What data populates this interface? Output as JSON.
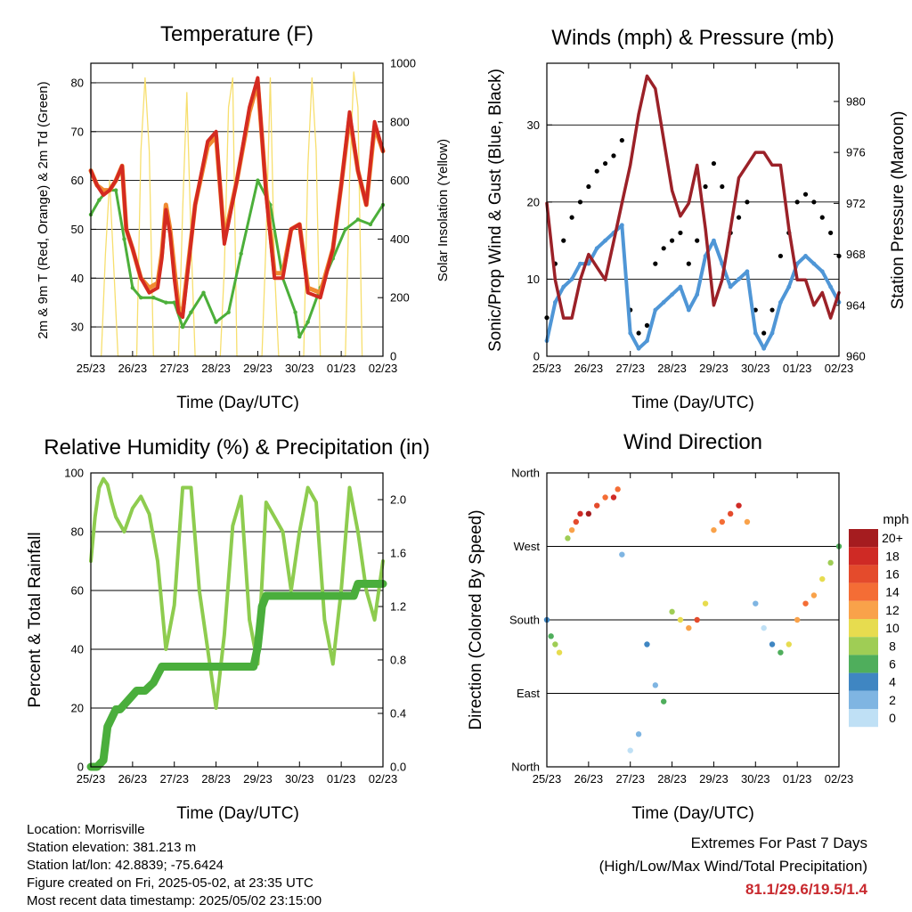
{
  "panels": {
    "temperature": {
      "title": "Temperature (F)",
      "xlabel": "Time (Day/UTC)",
      "ylabel_left": "2m & 9m T (Red, Orange) & 2m Td (Green)",
      "ylabel_right": "Solar Insolation (Yellow)"
    },
    "winds": {
      "title": "Winds (mph) & Pressure (mb)",
      "xlabel": "Time (Day/UTC)",
      "ylabel_left": "Sonic/Prop Wind & Gust (Blue, Black)",
      "ylabel_right": "Station Pressure (Maroon)"
    },
    "humidity": {
      "title": "Relative Humidity (%) & Precipitation (in)",
      "xlabel": "Time (Day/UTC)",
      "ylabel_left": "Percent & Total Rainfall"
    },
    "direction": {
      "title": "Wind Direction",
      "xlabel": "Time (Day/UTC)",
      "ylabel_left": "Direction (Colored By Speed)",
      "legend_title": "mph"
    }
  },
  "footer": {
    "location": "Location: Morrisville",
    "elevation": "Station elevation: 381.213 m",
    "latlon": "Station lat/lon: 42.8839; -75.6424",
    "created": "Figure created on Fri, 2025-05-02, at 23:35 UTC",
    "recent": "Most recent data timestamp: 2025/05/02 23:15:00",
    "extremes_title": "Extremes For Past 7 Days",
    "extremes_subtitle": "(High/Low/Max Wind/Total Precipitation)",
    "extremes_values": "81.1/29.6/19.5/1.4"
  },
  "chart_data": [
    {
      "id": "temperature",
      "type": "line",
      "x_ticks": [
        "25/23",
        "26/23",
        "27/23",
        "28/23",
        "29/23",
        "30/23",
        "01/23",
        "02/23"
      ],
      "xlim": [
        0,
        7
      ],
      "ylim_left": [
        24,
        84
      ],
      "yticks_left": [
        30,
        40,
        50,
        60,
        70,
        80
      ],
      "ylim_right": [
        0,
        1000
      ],
      "yticks_right": [
        0,
        200,
        400,
        600,
        800,
        1000
      ],
      "colors": {
        "t2m": "#d42a20",
        "t9m": "#f08a30",
        "td2m": "#4caf3a",
        "solar": "#f7df6e"
      },
      "series": [
        {
          "key": "t2m",
          "x": [
            0,
            0.15,
            0.3,
            0.45,
            0.6,
            0.75,
            0.85,
            1.0,
            1.2,
            1.4,
            1.6,
            1.7,
            1.8,
            1.9,
            2.0,
            2.1,
            2.2,
            2.5,
            2.8,
            3.0,
            3.2,
            3.5,
            3.8,
            4.0,
            4.2,
            4.4,
            4.6,
            4.8,
            5.0,
            5.2,
            5.5,
            5.8,
            6.0,
            6.2,
            6.4,
            6.6,
            6.8,
            7.0
          ],
          "values": [
            62,
            59,
            57,
            58,
            60,
            63,
            50,
            46,
            40,
            37,
            38,
            44,
            54,
            49,
            40,
            33,
            32,
            55,
            68,
            70,
            47,
            60,
            75,
            81,
            57,
            40,
            40,
            50,
            51,
            37,
            36,
            46,
            59,
            74,
            62,
            55,
            72,
            66
          ]
        },
        {
          "key": "t9m",
          "x": [
            0,
            0.15,
            0.3,
            0.45,
            0.6,
            0.75,
            0.85,
            1.0,
            1.2,
            1.4,
            1.6,
            1.7,
            1.8,
            1.9,
            2.0,
            2.1,
            2.2,
            2.5,
            2.8,
            3.0,
            3.2,
            3.5,
            3.8,
            4.0,
            4.2,
            4.4,
            4.6,
            4.8,
            5.0,
            5.2,
            5.5,
            5.8,
            6.0,
            6.2,
            6.4,
            6.6,
            6.8,
            7.0
          ],
          "values": [
            62,
            59,
            58,
            58,
            60,
            63,
            50,
            46,
            40,
            38,
            39,
            45,
            55,
            50,
            42,
            34,
            33,
            55,
            67,
            69,
            48,
            60,
            74,
            80,
            58,
            41,
            41,
            50,
            51,
            38,
            37,
            46,
            59,
            73,
            62,
            55,
            71,
            66
          ]
        },
        {
          "key": "td2m",
          "x": [
            0,
            0.2,
            0.4,
            0.6,
            0.8,
            1.0,
            1.2,
            1.5,
            1.8,
            2.0,
            2.2,
            2.4,
            2.7,
            3.0,
            3.3,
            3.6,
            4.0,
            4.3,
            4.6,
            4.9,
            5.0,
            5.2,
            5.5,
            5.8,
            6.1,
            6.4,
            6.7,
            7.0
          ],
          "values": [
            53,
            56,
            58,
            58,
            48,
            38,
            36,
            36,
            35,
            35,
            30,
            33,
            37,
            31,
            33,
            45,
            60,
            55,
            40,
            33,
            28,
            31,
            38,
            44,
            50,
            52,
            51,
            55
          ]
        },
        {
          "key": "solar",
          "x": [
            0.25,
            0.35,
            0.45,
            0.55,
            0.65,
            1.1,
            1.2,
            1.3,
            1.4,
            1.5,
            2.1,
            2.2,
            2.3,
            2.4,
            2.5,
            3.1,
            3.2,
            3.3,
            3.4,
            3.5,
            4.1,
            4.2,
            4.3,
            4.4,
            4.5,
            5.1,
            5.2,
            5.3,
            5.4,
            5.5,
            6.1,
            6.2,
            6.3,
            6.4,
            6.5
          ],
          "values": [
            0,
            350,
            600,
            300,
            0,
            0,
            700,
            950,
            700,
            0,
            0,
            500,
            900,
            400,
            0,
            0,
            300,
            850,
            950,
            0,
            0,
            400,
            950,
            300,
            0,
            0,
            650,
            950,
            700,
            0,
            0,
            600,
            970,
            850,
            0
          ]
        }
      ]
    },
    {
      "id": "winds",
      "type": "scatter",
      "x_ticks": [
        "25/23",
        "26/23",
        "27/23",
        "28/23",
        "29/23",
        "30/23",
        "01/23",
        "02/23"
      ],
      "xlim": [
        0,
        7
      ],
      "ylim_left": [
        0,
        38
      ],
      "yticks_left": [
        0,
        10,
        20,
        30
      ],
      "ylim_right": [
        960,
        983
      ],
      "yticks_right": [
        960,
        964,
        968,
        972,
        976,
        980
      ],
      "colors": {
        "wind": "#4f96d6",
        "gust": "#000000",
        "pressure": "#9b2128"
      },
      "series": [
        {
          "key": "wind",
          "x": [
            0,
            0.2,
            0.4,
            0.6,
            0.8,
            1.0,
            1.2,
            1.4,
            1.6,
            1.8,
            2.0,
            2.2,
            2.4,
            2.6,
            2.8,
            3.0,
            3.2,
            3.4,
            3.6,
            3.8,
            4.0,
            4.2,
            4.4,
            4.6,
            4.8,
            5.0,
            5.2,
            5.4,
            5.6,
            5.8,
            6.0,
            6.2,
            6.4,
            6.6,
            6.8,
            7.0
          ],
          "values": [
            2,
            7,
            9,
            10,
            12,
            12,
            14,
            15,
            16,
            17,
            3,
            1,
            2,
            6,
            7,
            8,
            9,
            6,
            8,
            13,
            15,
            12,
            9,
            10,
            11,
            3,
            1,
            3,
            7,
            9,
            12,
            13,
            12,
            11,
            9,
            7
          ]
        },
        {
          "key": "gust",
          "x": [
            0,
            0.2,
            0.4,
            0.6,
            0.8,
            1.0,
            1.2,
            1.4,
            1.6,
            1.8,
            2.0,
            2.2,
            2.4,
            2.6,
            2.8,
            3.0,
            3.2,
            3.4,
            3.6,
            3.8,
            4.0,
            4.2,
            4.4,
            4.6,
            4.8,
            5.0,
            5.2,
            5.4,
            5.6,
            5.8,
            6.0,
            6.2,
            6.4,
            6.6,
            6.8,
            7.0
          ],
          "values": [
            5,
            12,
            15,
            18,
            20,
            22,
            24,
            25,
            26,
            28,
            6,
            3,
            4,
            12,
            14,
            15,
            16,
            12,
            15,
            22,
            25,
            22,
            16,
            18,
            20,
            6,
            3,
            6,
            13,
            16,
            20,
            21,
            20,
            18,
            16,
            13
          ]
        },
        {
          "key": "pressure",
          "x": [
            0,
            0.2,
            0.4,
            0.6,
            0.8,
            1.0,
            1.2,
            1.4,
            1.6,
            1.8,
            2.0,
            2.2,
            2.4,
            2.6,
            2.8,
            3.0,
            3.2,
            3.4,
            3.6,
            3.8,
            4.0,
            4.2,
            4.4,
            4.6,
            4.8,
            5.0,
            5.2,
            5.4,
            5.6,
            5.8,
            6.0,
            6.2,
            6.4,
            6.6,
            6.8,
            7.0
          ],
          "values": [
            972,
            966,
            963,
            963,
            966,
            968,
            967,
            966,
            969,
            972,
            975,
            979,
            982,
            981,
            977,
            973,
            971,
            972,
            975,
            970,
            964,
            966,
            970,
            974,
            975,
            976,
            976,
            975,
            975,
            970,
            966,
            966,
            964,
            965,
            963,
            965
          ]
        }
      ]
    },
    {
      "id": "humidity",
      "type": "line",
      "x_ticks": [
        "25/23",
        "26/23",
        "27/23",
        "28/23",
        "29/23",
        "30/23",
        "01/23",
        "02/23"
      ],
      "xlim": [
        0,
        7
      ],
      "ylim_left": [
        0,
        100
      ],
      "yticks_left": [
        0,
        20,
        40,
        60,
        80,
        100
      ],
      "ylim_right": [
        0,
        2.2
      ],
      "yticks_right": [
        "0.0",
        "0.4",
        "0.8",
        "1.2",
        "1.6",
        "2.0"
      ],
      "colors": {
        "rh": "#8ecc4f",
        "precip": "#4aae3c"
      },
      "series": [
        {
          "key": "rh",
          "x": [
            0,
            0.1,
            0.2,
            0.3,
            0.4,
            0.5,
            0.6,
            0.8,
            1.0,
            1.2,
            1.4,
            1.6,
            1.8,
            2.0,
            2.2,
            2.4,
            2.6,
            2.8,
            3.0,
            3.2,
            3.4,
            3.6,
            3.8,
            4.0,
            4.2,
            4.4,
            4.6,
            4.8,
            5.0,
            5.2,
            5.4,
            5.6,
            5.8,
            6.0,
            6.2,
            6.4,
            6.6,
            6.8,
            7.0
          ],
          "values": [
            70,
            85,
            95,
            98,
            96,
            90,
            85,
            80,
            88,
            92,
            86,
            70,
            40,
            55,
            95,
            95,
            60,
            40,
            20,
            45,
            82,
            92,
            50,
            35,
            90,
            85,
            80,
            60,
            80,
            95,
            90,
            50,
            35,
            60,
            95,
            80,
            60,
            50,
            70
          ]
        },
        {
          "key": "precip",
          "x": [
            0,
            0.15,
            0.3,
            0.4,
            0.6,
            0.7,
            0.9,
            1.1,
            1.3,
            1.5,
            1.7,
            1.9,
            2.1,
            2.4,
            2.7,
            3.0,
            3.3,
            3.6,
            3.9,
            4.0,
            4.05,
            4.1,
            4.2,
            4.4,
            4.7,
            5.0,
            5.4,
            5.8,
            6.1,
            6.3,
            6.4,
            6.6,
            6.8,
            7.0
          ],
          "values": [
            0,
            0,
            0.05,
            0.3,
            0.43,
            0.43,
            0.5,
            0.57,
            0.57,
            0.63,
            0.75,
            0.75,
            0.75,
            0.75,
            0.75,
            0.75,
            0.75,
            0.75,
            0.75,
            0.9,
            1.05,
            1.2,
            1.28,
            1.28,
            1.28,
            1.28,
            1.28,
            1.28,
            1.28,
            1.28,
            1.37,
            1.37,
            1.37,
            1.37
          ]
        }
      ]
    },
    {
      "id": "direction",
      "type": "scatter",
      "x_ticks": [
        "25/23",
        "26/23",
        "27/23",
        "28/23",
        "29/23",
        "30/23",
        "01/23",
        "02/23"
      ],
      "xlim": [
        0,
        7
      ],
      "ylim_left": [
        0,
        360
      ],
      "ytick_labels": [
        "North",
        "East",
        "South",
        "West",
        "North"
      ],
      "legend": [
        {
          "label": "20+",
          "color": "#a51c1f"
        },
        {
          "label": "18",
          "color": "#cf2a25"
        },
        {
          "label": "16",
          "color": "#e44b2c"
        },
        {
          "label": "14",
          "color": "#f46d35"
        },
        {
          "label": "12",
          "color": "#f9a24a"
        },
        {
          "label": "10",
          "color": "#e7dc4f"
        },
        {
          "label": "8",
          "color": "#9fcd55"
        },
        {
          "label": "6",
          "color": "#4fae5c"
        },
        {
          "label": "4",
          "color": "#3f86c2"
        },
        {
          "label": "2",
          "color": "#7fb5e2"
        },
        {
          "label": "0",
          "color": "#bfe0f5"
        }
      ],
      "points": {
        "x": [
          0,
          0.1,
          0.2,
          0.3,
          0.5,
          0.6,
          0.7,
          0.8,
          1.0,
          1.2,
          1.4,
          1.6,
          1.7,
          1.8,
          2.0,
          2.2,
          2.4,
          2.6,
          2.8,
          3.0,
          3.2,
          3.4,
          3.6,
          3.8,
          4.0,
          4.2,
          4.4,
          4.6,
          4.8,
          5.0,
          5.2,
          5.4,
          5.6,
          5.8,
          6.0,
          6.2,
          6.4,
          6.6,
          6.8,
          7.0
        ],
        "dir": [
          180,
          160,
          150,
          140,
          280,
          290,
          300,
          310,
          310,
          320,
          330,
          330,
          340,
          260,
          20,
          40,
          150,
          100,
          80,
          190,
          180,
          170,
          180,
          200,
          290,
          300,
          310,
          320,
          300,
          200,
          170,
          150,
          140,
          150,
          180,
          200,
          210,
          230,
          250,
          270
        ],
        "speed": [
          4,
          6,
          8,
          10,
          8,
          12,
          16,
          18,
          20,
          16,
          14,
          18,
          14,
          2,
          0,
          2,
          4,
          2,
          6,
          8,
          10,
          12,
          16,
          10,
          12,
          14,
          16,
          18,
          12,
          2,
          0,
          4,
          6,
          10,
          12,
          14,
          12,
          10,
          8,
          6
        ]
      }
    }
  ]
}
